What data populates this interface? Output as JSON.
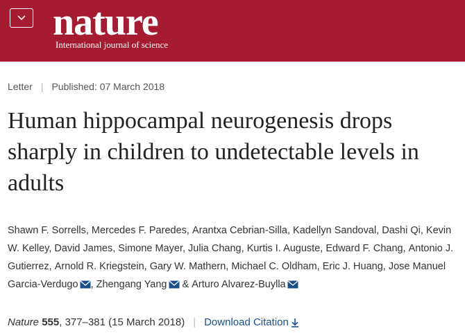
{
  "header": {
    "brand": "nature",
    "tagline": "International journal of science",
    "bg_color": "#a51c30",
    "menu_icon": "chevron-down-icon"
  },
  "article": {
    "type": "Letter",
    "published": "Published: 07 March 2018",
    "title": "Human hippocampal neurogenesis drops sharply in children to undetectable levels in adults",
    "authors": [
      {
        "name": "Shawn F. Sorrells",
        "sep": ", "
      },
      {
        "name": "Mercedes F. Paredes",
        "sep": ", "
      },
      {
        "name": "Arantxa Cebrian-Silla",
        "sep": ", "
      },
      {
        "name": "Kadellyn Sandoval",
        "sep": ", "
      },
      {
        "name": "Dashi Qi",
        "sep": ", "
      },
      {
        "name": "Kevin W. Kelley",
        "sep": ", "
      },
      {
        "name": "David James",
        "sep": ", "
      },
      {
        "name": "Simone Mayer",
        "sep": ", "
      },
      {
        "name": "Julia Chang",
        "sep": ", "
      },
      {
        "name": "Kurtis I. Auguste",
        "sep": ", "
      },
      {
        "name": "Edward F. Chang",
        "sep": ", "
      },
      {
        "name": "Antonio J. Gutierrez",
        "sep": ", "
      },
      {
        "name": "Arnold R. Kriegstein",
        "sep": ", "
      },
      {
        "name": "Gary W. Mathern",
        "sep": ", "
      },
      {
        "name": "Michael C. Oldham",
        "sep": ", "
      },
      {
        "name": "Eric J. Huang",
        "sep": ", "
      },
      {
        "name": "Jose Manuel Garcia-Verdugo",
        "sep": ", ",
        "mail": true
      },
      {
        "name": "Zhengang Yang",
        "sep": " & ",
        "mail": true
      },
      {
        "name": "Arturo Alvarez-Buylla",
        "sep": "",
        "mail": true
      }
    ],
    "citation": {
      "journal": "Nature",
      "volume": "555",
      "pages": ", 377–381 (15 March 2018)",
      "download_label": "Download Citation",
      "download_icon": "download-icon"
    },
    "link_color": "#1a4f8a"
  }
}
